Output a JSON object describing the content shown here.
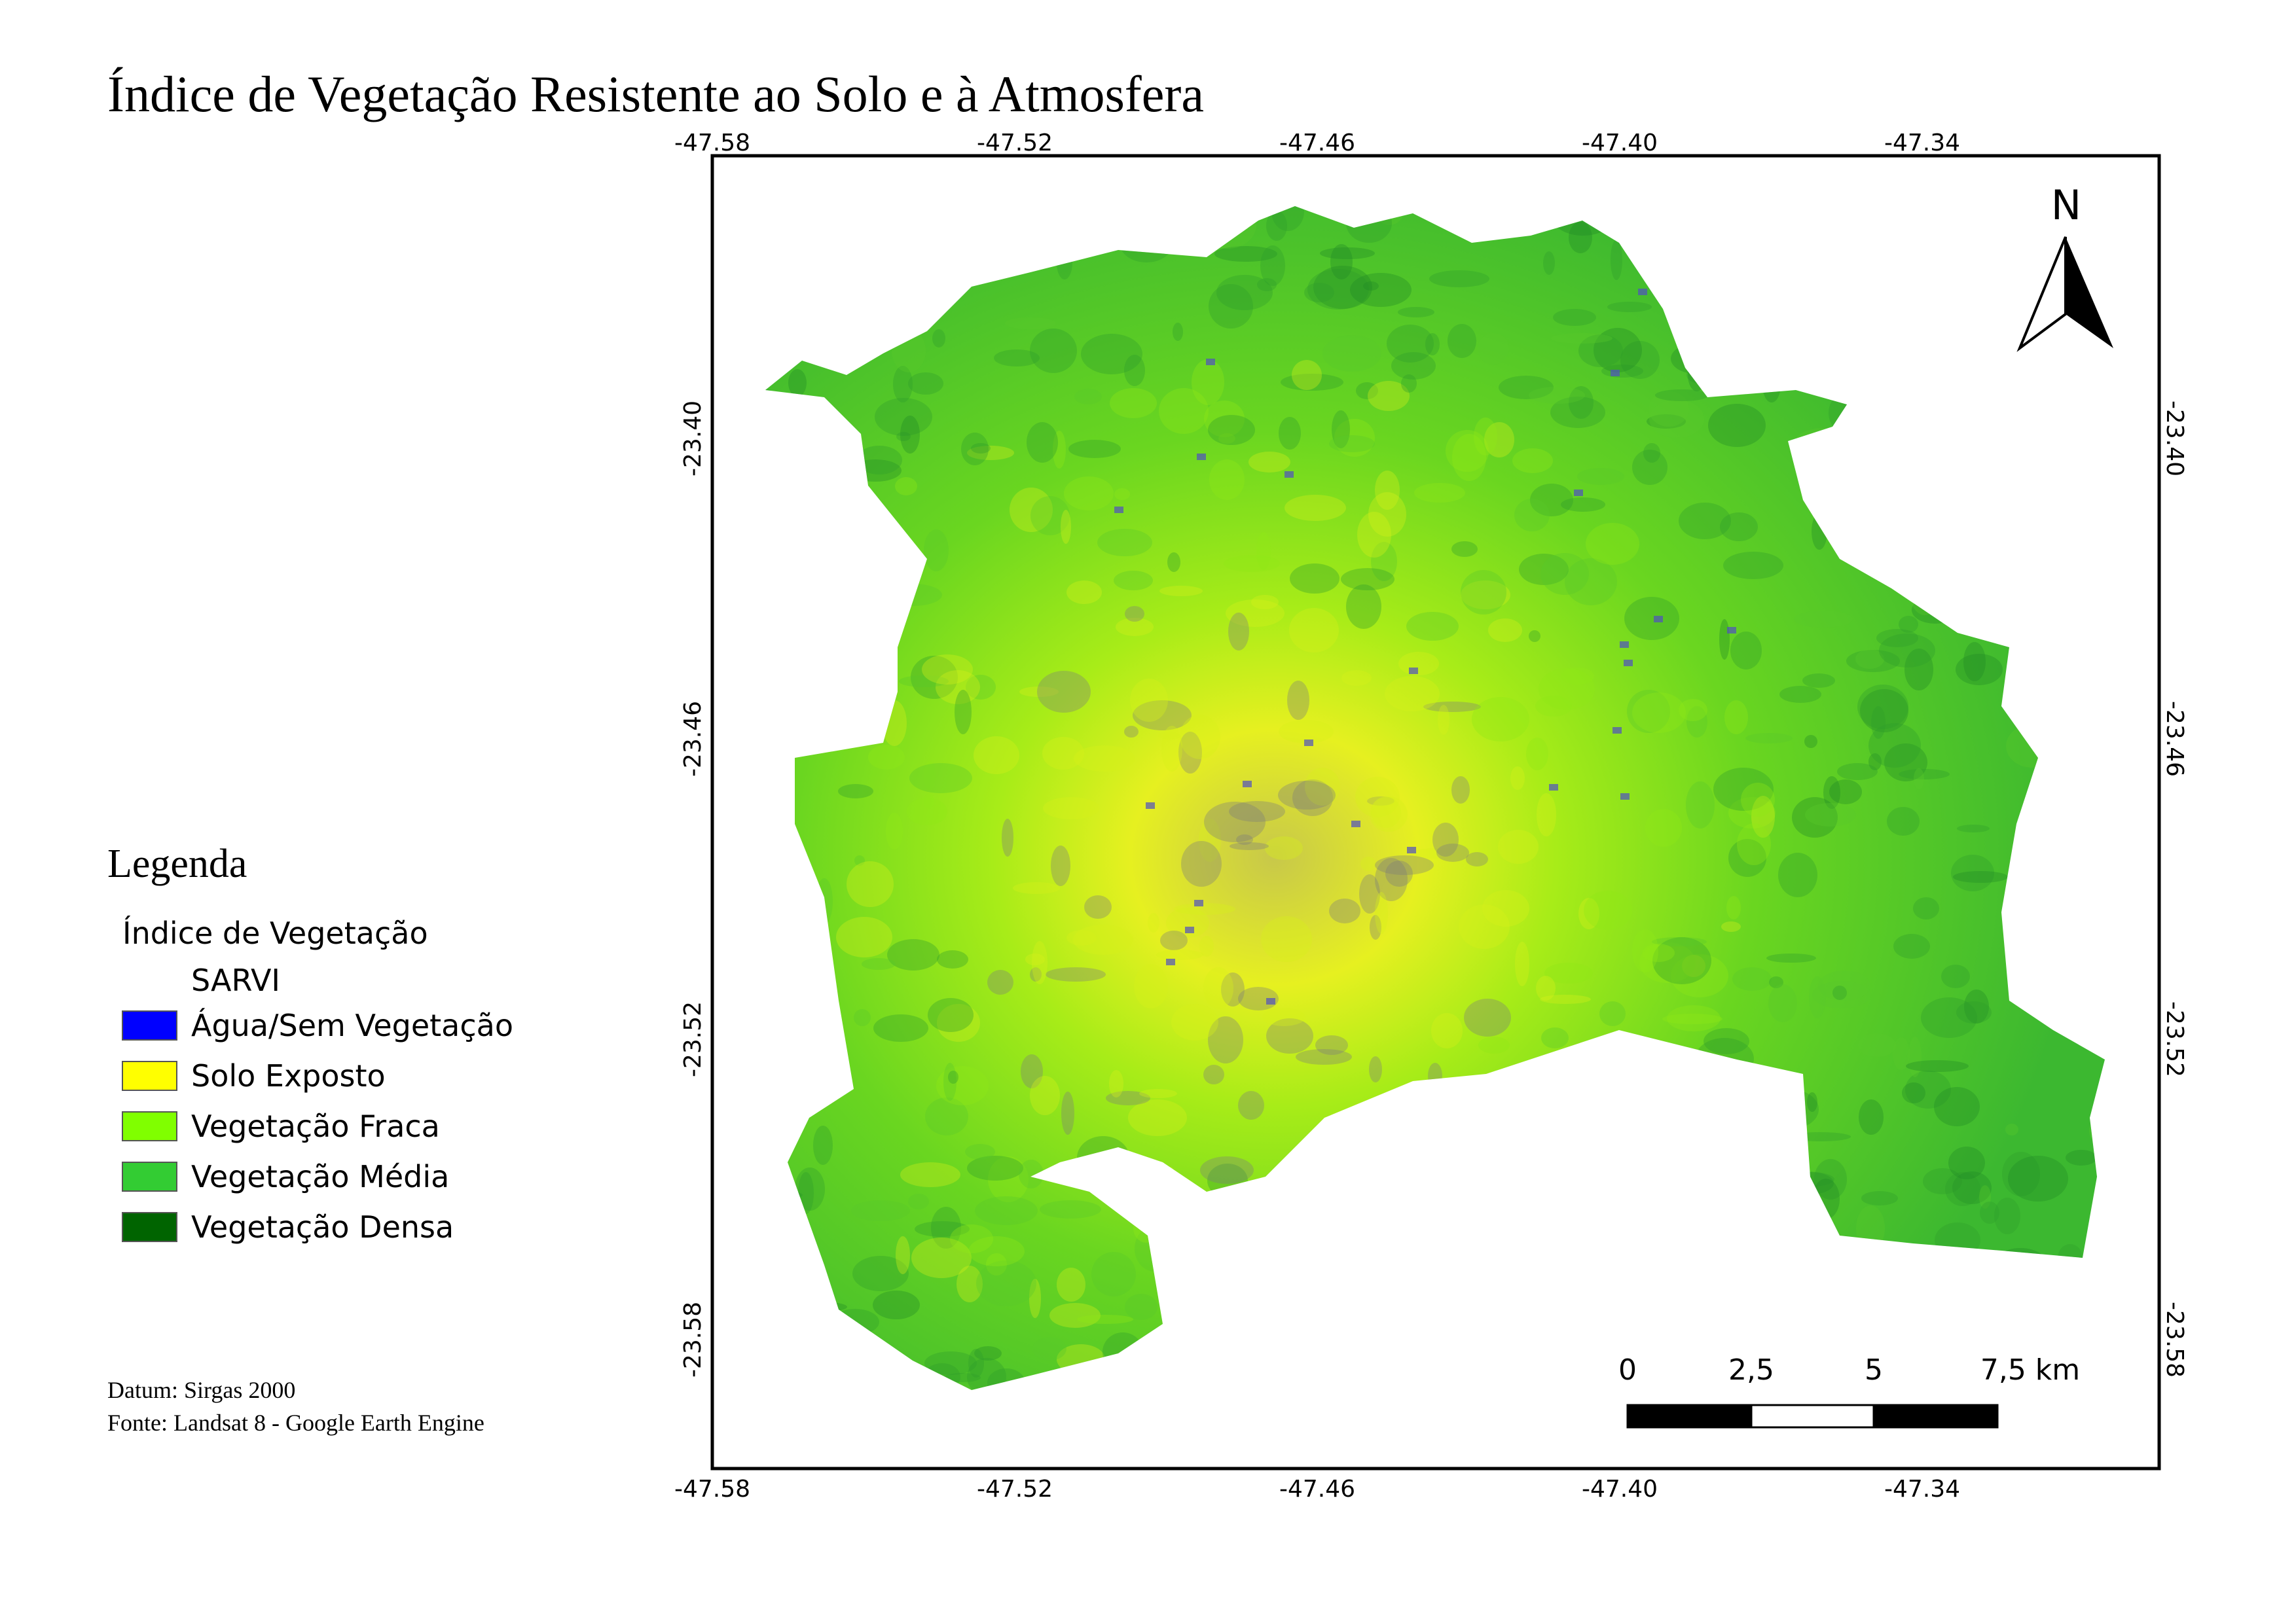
{
  "title": "Índice de Vegetação Resistente ao Solo e à Atmosfera",
  "legend": {
    "heading": "Legenda",
    "layer": "Índice de Vegetação",
    "band": "SARVI",
    "items": [
      {
        "label": "Água/Sem Vegetação",
        "color": "#0000ff"
      },
      {
        "label": "Solo Exposto",
        "color": "#ffff00"
      },
      {
        "label": "Vegetação Fraca",
        "color": "#80ff00"
      },
      {
        "label": "Vegetação Média",
        "color": "#33cc33"
      },
      {
        "label": "Vegetação Densa",
        "color": "#006400"
      }
    ]
  },
  "grid": {
    "lon_labels": [
      "-47.58",
      "-47.52",
      "-47.46",
      "-47.40",
      "-47.34"
    ],
    "lat_labels": [
      "-23.40",
      "-23.46",
      "-23.52",
      "-23.58"
    ]
  },
  "north": "N",
  "scale_bar": {
    "labels": [
      "0",
      "2,5",
      "5",
      "7,5 km"
    ]
  },
  "notes": [
    "Datum: Sirgas 2000",
    "Fonte: Landsat 8 - Google Earth Engine"
  ]
}
